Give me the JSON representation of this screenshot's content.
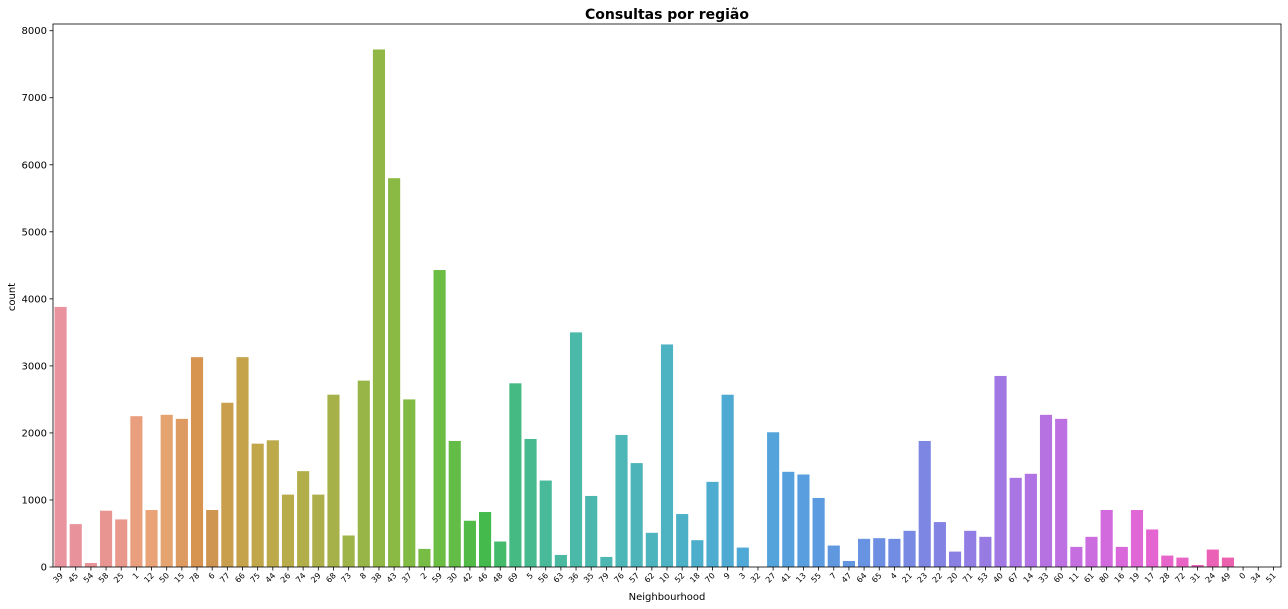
{
  "chart_data": {
    "type": "bar",
    "title": "Consultas por região",
    "xlabel": "Neighbourhood",
    "ylabel": "count",
    "ylim": [
      0,
      8100
    ],
    "yticks": [
      0,
      1000,
      2000,
      3000,
      4000,
      5000,
      6000,
      7000,
      8000
    ],
    "grid": false,
    "categories": [
      "39",
      "45",
      "54",
      "58",
      "25",
      "1",
      "12",
      "50",
      "15",
      "78",
      "6",
      "77",
      "66",
      "75",
      "44",
      "26",
      "74",
      "29",
      "68",
      "73",
      "8",
      "38",
      "43",
      "37",
      "2",
      "59",
      "30",
      "42",
      "46",
      "48",
      "69",
      "5",
      "56",
      "63",
      "36",
      "35",
      "79",
      "76",
      "57",
      "62",
      "10",
      "52",
      "18",
      "70",
      "9",
      "3",
      "32",
      "27",
      "41",
      "13",
      "55",
      "7",
      "47",
      "64",
      "65",
      "4",
      "21",
      "23",
      "22",
      "20",
      "71",
      "53",
      "40",
      "67",
      "14",
      "33",
      "60",
      "11",
      "61",
      "80",
      "16",
      "19",
      "17",
      "28",
      "72",
      "31",
      "24",
      "49",
      "0",
      "34",
      "51"
    ],
    "values": [
      3880,
      640,
      60,
      840,
      710,
      2250,
      850,
      2270,
      2210,
      3130,
      850,
      2450,
      3130,
      1840,
      1890,
      1080,
      1430,
      1080,
      2570,
      470,
      2780,
      7720,
      5800,
      2500,
      270,
      4430,
      1880,
      690,
      820,
      380,
      2740,
      1910,
      1290,
      180,
      3500,
      1060,
      150,
      1970,
      1550,
      510,
      3320,
      790,
      400,
      1270,
      2570,
      290,
      0,
      2010,
      1420,
      1380,
      1030,
      320,
      90,
      420,
      430,
      420,
      540,
      1880,
      670,
      230,
      540,
      450,
      2850,
      1330,
      1390,
      2270,
      2210,
      300,
      450,
      850,
      300,
      850,
      560,
      170,
      140,
      30,
      260,
      140,
      0,
      0,
      0
    ],
    "colors": [
      "#e8939e",
      "#e8939c",
      "#e89498",
      "#e89592",
      "#e8998c",
      "#e99f7e",
      "#e9a377",
      "#e5a370",
      "#dd9a61",
      "#d79451",
      "#cf9652",
      "#c99e4c",
      "#c5a34a",
      "#c1a64a",
      "#bca94a",
      "#b7ab4a",
      "#b2ae4a",
      "#adb04a",
      "#a6b249",
      "#9eb348",
      "#98b547",
      "#91b746",
      "#8ab944",
      "#82bb44",
      "#77bc44",
      "#6bbd44",
      "#62bc46",
      "#52bb48",
      "#44ba4c",
      "#44ba6b",
      "#46ba83",
      "#48ba90",
      "#49ba99",
      "#4ab9a0",
      "#4bb9a7",
      "#4cb8ad",
      "#4db7b2",
      "#4db6b6",
      "#4db5ba",
      "#4db4be",
      "#4db2c2",
      "#4cb0c7",
      "#4caecb",
      "#4daccf",
      "#4eaad3",
      "#50a8d7",
      "#52a6d9",
      "#54a4db",
      "#56a1dd",
      "#599ede",
      "#5c9bdf",
      "#6098e0",
      "#6495e1",
      "#6892e2",
      "#6c8fe2",
      "#718ce3",
      "#7789e3",
      "#7d86e3",
      "#8383e3",
      "#8a80e3",
      "#917de3",
      "#987ae3",
      "#a077e3",
      "#a975e3",
      "#b073e3",
      "#b772e2",
      "#bd70e1",
      "#c46ee0",
      "#cb6cdf",
      "#d26add",
      "#d968da",
      "#df67d6",
      "#e465d1",
      "#e764cb",
      "#e963c4",
      "#ea62bd",
      "#eb61b5",
      "#eb61ad",
      "#eb61a5",
      "#eb619d",
      "#eb6196"
    ]
  }
}
